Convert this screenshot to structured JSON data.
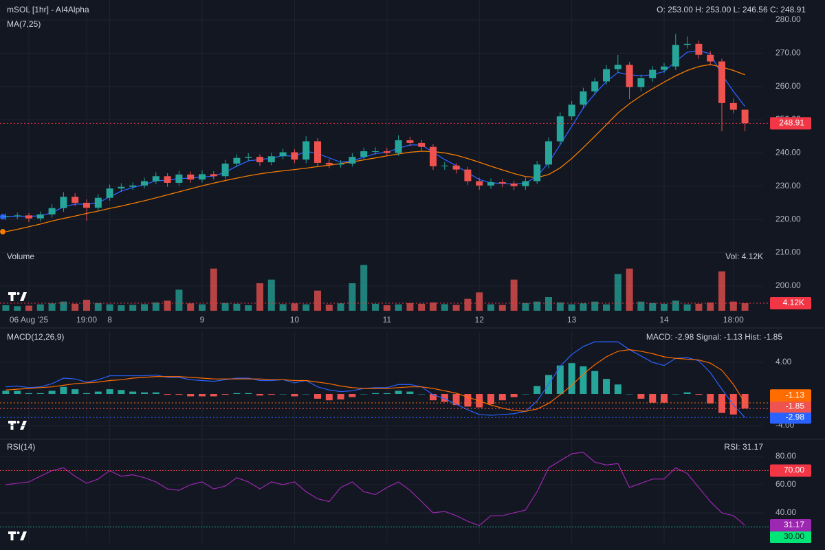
{
  "chart_data": [
    {
      "type": "candlestick",
      "title": "mSOL [1hr] - AI4Alpha",
      "subtitle": "MA(7,25)",
      "legend_text": "O: 253.00 H: 253.00 L: 246.56 C: 248.91",
      "categories": [
        null,
        null,
        "06 Aug '25",
        null,
        null,
        null,
        null,
        "19:00",
        null,
        "8",
        null,
        null,
        null,
        null,
        null,
        null,
        null,
        "9",
        null,
        null,
        null,
        null,
        null,
        null,
        null,
        "10",
        null,
        null,
        null,
        null,
        null,
        null,
        null,
        "11",
        null,
        null,
        null,
        null,
        null,
        null,
        null,
        "12",
        null,
        null,
        null,
        null,
        null,
        null,
        null,
        "13",
        null,
        null,
        null,
        null,
        null,
        null,
        null,
        "14",
        null,
        null,
        null,
        null,
        null,
        "18:00",
        null
      ],
      "open": [
        220.8,
        221.0,
        221.2,
        220.3,
        221.5,
        223.4,
        226.8,
        225.0,
        223.5,
        226.5,
        229.3,
        229.8,
        230.2,
        231.5,
        233.0,
        231.0,
        233.5,
        232.0,
        233.6,
        233.0,
        236.8,
        238.5,
        238.8,
        237.2,
        239.0,
        240.2,
        238.0,
        243.5,
        237.0,
        236.5,
        236.8,
        238.8,
        240.5,
        240.5,
        240.0,
        243.8,
        243.0,
        241.8,
        236.0,
        236.2,
        235.0,
        231.5,
        230.2,
        231.2,
        230.8,
        230.0,
        231.5,
        236.5,
        243.5,
        251.0,
        254.5,
        258.5,
        261.5,
        265.2,
        266.5,
        259.8,
        262.5,
        265.0,
        266.0,
        272.5,
        272.8,
        269.5,
        267.5,
        255.0,
        253.0
      ],
      "high": [
        221.8,
        222.0,
        221.9,
        222.4,
        224.6,
        228.2,
        227.9,
        226.0,
        227.6,
        230.5,
        230.9,
        231.1,
        232.6,
        234.2,
        233.9,
        234.6,
        234.4,
        234.8,
        234.5,
        237.9,
        239.6,
        239.9,
        239.6,
        240.1,
        241.3,
        241.1,
        245.0,
        244.4,
        238.1,
        237.8,
        239.9,
        241.6,
        241.7,
        241.5,
        245.3,
        244.9,
        243.9,
        242.6,
        237.3,
        236.9,
        235.8,
        232.5,
        232.3,
        232.1,
        231.6,
        232.6,
        237.6,
        244.6,
        252.2,
        255.6,
        259.6,
        262.6,
        266.4,
        269.5,
        267.4,
        263.6,
        266.1,
        267.1,
        275.8,
        275.0,
        273.8,
        270.6,
        268.3,
        256.3,
        253.0
      ],
      "low": [
        219.8,
        220.1,
        219.2,
        219.4,
        220.5,
        222.3,
        224.0,
        219.6,
        222.5,
        225.6,
        228.3,
        228.9,
        229.3,
        230.6,
        229.8,
        230.1,
        231.0,
        231.1,
        232.0,
        232.1,
        235.8,
        237.6,
        236.1,
        236.3,
        238.1,
        236.9,
        236.9,
        235.9,
        235.4,
        235.6,
        235.9,
        237.8,
        239.5,
        239.0,
        239.1,
        242.0,
        240.6,
        234.9,
        234.9,
        233.8,
        230.4,
        228.9,
        229.2,
        229.7,
        228.8,
        228.9,
        230.6,
        235.4,
        242.4,
        249.9,
        253.4,
        257.4,
        260.5,
        264.1,
        256.2,
        258.6,
        261.4,
        264.0,
        264.9,
        271.4,
        268.3,
        266.3,
        246.5,
        252.0,
        246.56
      ],
      "close": [
        221.0,
        221.2,
        220.3,
        221.5,
        223.4,
        226.8,
        225.0,
        223.5,
        226.5,
        229.3,
        229.8,
        230.2,
        231.5,
        233.0,
        231.0,
        233.5,
        232.0,
        233.6,
        233.0,
        236.8,
        238.5,
        238.8,
        237.2,
        239.0,
        240.2,
        238.0,
        243.5,
        237.0,
        236.5,
        236.8,
        238.8,
        240.5,
        240.5,
        240.0,
        243.8,
        243.0,
        241.8,
        236.0,
        236.2,
        235.0,
        231.5,
        230.2,
        231.2,
        230.8,
        230.0,
        231.5,
        236.5,
        243.5,
        251.0,
        254.5,
        258.5,
        261.5,
        265.2,
        266.5,
        259.8,
        262.5,
        265.0,
        266.0,
        272.5,
        272.8,
        269.5,
        267.5,
        255.0,
        253.0,
        248.91
      ],
      "colors": {
        "up": "#26a69a",
        "down": "#ef5350",
        "last": "#f23645"
      },
      "series": [
        {
          "color": "#2962ff",
          "values": [
            220.8,
            221.0,
            220.9,
            221.1,
            222.0,
            223.8,
            224.6,
            224.6,
            225.0,
            226.8,
            228.5,
            229.6,
            230.5,
            231.6,
            231.8,
            232.3,
            232.4,
            232.8,
            233.0,
            234.2,
            236.0,
            237.6,
            238.0,
            238.4,
            239.2,
            239.0,
            240.5,
            239.8,
            238.5,
            237.2,
            237.6,
            238.7,
            239.8,
            240.2,
            241.4,
            242.4,
            242.4,
            240.2,
            238.0,
            236.2,
            234.0,
            232.0,
            231.0,
            230.8,
            230.6,
            230.9,
            233.0,
            237.0,
            242.5,
            248.0,
            253.5,
            257.8,
            261.5,
            264.2,
            263.5,
            263.2,
            263.5,
            264.5,
            267.5,
            270.3,
            270.8,
            269.8,
            263.5,
            258.5,
            254.0
          ]
        },
        {
          "color": "#f57c00",
          "values": [
            216.3,
            217.0,
            217.8,
            218.6,
            219.5,
            220.3,
            221.0,
            221.8,
            222.5,
            223.3,
            224.0,
            224.8,
            225.6,
            226.5,
            227.4,
            228.3,
            229.2,
            230.1,
            230.9,
            231.7,
            232.4,
            233.1,
            233.7,
            234.2,
            234.6,
            235.0,
            235.4,
            235.9,
            236.3,
            236.8,
            237.3,
            237.9,
            238.5,
            239.1,
            239.7,
            240.2,
            240.5,
            240.4,
            240.0,
            239.3,
            238.3,
            237.2,
            236.0,
            234.9,
            233.8,
            232.9,
            232.6,
            233.5,
            235.5,
            238.3,
            241.6,
            245.0,
            248.5,
            252.0,
            254.8,
            257.2,
            259.3,
            261.3,
            263.2,
            264.8,
            266.0,
            266.6,
            265.8,
            264.8,
            263.5
          ]
        }
      ],
      "ylim": [
        191.9,
        286
      ],
      "yticks": [
        {
          "value": 200,
          "label": "200.00"
        },
        {
          "value": 210,
          "label": "210.00"
        },
        {
          "value": 220,
          "label": "220.00"
        },
        {
          "value": 230,
          "label": "230.00"
        },
        {
          "value": 240,
          "label": "240.00"
        },
        {
          "value": 250,
          "label": "250.00"
        },
        {
          "value": 260,
          "label": "260.00"
        },
        {
          "value": 270,
          "label": "270.00"
        },
        {
          "value": 280,
          "label": "280.00"
        }
      ],
      "grid": true
    },
    {
      "type": "volume",
      "title": "Volume",
      "legend_text": "Vol: 4.12K",
      "values": [
        3000,
        2500,
        2800,
        3500,
        4000,
        5000,
        3800,
        6000,
        4200,
        3500,
        3000,
        3200,
        3600,
        4500,
        5500,
        11500,
        4000,
        3500,
        23000,
        4200,
        3800,
        3000,
        15000,
        17000,
        3600,
        4000,
        3500,
        11000,
        3300,
        4000,
        15000,
        25000,
        3800,
        3000,
        3500,
        4200,
        3800,
        4500,
        3600,
        3200,
        6500,
        10000,
        3500,
        3200,
        17000,
        4200,
        5000,
        7500,
        4500,
        3500,
        4000,
        5000,
        3500,
        20000,
        23000,
        5000,
        4200,
        3800,
        5500,
        3500,
        3800,
        4500,
        21500,
        5000,
        4120
      ],
      "marker": {
        "value": 4120,
        "label": "4.12K"
      },
      "color": "#f23645",
      "ylim": [
        0,
        30000
      ]
    },
    {
      "type": "macd",
      "title": "MACD(12,26,9)",
      "legend_text": "MACD: -2.98 Signal: -1.13 Hist: -1.85",
      "series": [
        {
          "color": "#2962ff",
          "values": [
            0.9,
            1.0,
            0.8,
            0.9,
            1.3,
            2.0,
            1.9,
            1.5,
            1.8,
            2.3,
            2.3,
            2.3,
            2.3,
            2.4,
            2.1,
            2.1,
            1.8,
            1.7,
            1.6,
            1.8,
            2.0,
            2.0,
            1.7,
            1.7,
            1.8,
            1.4,
            1.7,
            0.9,
            0.5,
            0.3,
            0.4,
            0.7,
            0.8,
            0.8,
            1.2,
            1.2,
            0.9,
            -0.1,
            -0.6,
            -1.3,
            -2.0,
            -2.6,
            -2.7,
            -2.6,
            -2.5,
            -2.2,
            -0.9,
            1.2,
            3.5,
            5.0,
            6.0,
            6.6,
            6.6,
            6.6,
            5.6,
            4.8,
            4.0,
            3.6,
            4.5,
            4.6,
            4.2,
            2.7,
            0.6,
            -1.4,
            -2.98
          ]
        },
        {
          "color": "#ff6d00",
          "values": [
            0.5,
            0.6,
            0.7,
            0.8,
            0.9,
            1.1,
            1.3,
            1.4,
            1.5,
            1.7,
            1.8,
            2.0,
            2.1,
            2.2,
            2.2,
            2.2,
            2.1,
            2.0,
            1.9,
            1.9,
            1.9,
            1.9,
            1.9,
            1.8,
            1.8,
            1.7,
            1.7,
            1.5,
            1.3,
            1.0,
            0.8,
            0.7,
            0.7,
            0.7,
            0.8,
            0.9,
            0.9,
            0.7,
            0.4,
            0.1,
            -0.4,
            -0.9,
            -1.4,
            -1.8,
            -2.1,
            -2.2,
            -1.9,
            -1.2,
            -0.1,
            1.1,
            2.5,
            3.7,
            4.7,
            5.4,
            5.6,
            5.4,
            5.1,
            4.7,
            4.5,
            4.4,
            4.3,
            3.9,
            3.0,
            1.2,
            -1.13
          ]
        }
      ],
      "histogram": {
        "colors": {
          "up": "#26a69a",
          "down": "#ef5350"
        },
        "values": [
          0.4,
          0.4,
          0.1,
          0.1,
          0.4,
          0.9,
          0.6,
          0.1,
          0.3,
          0.6,
          0.5,
          0.3,
          0.2,
          0.2,
          -0.1,
          -0.1,
          -0.3,
          -0.3,
          -0.3,
          -0.1,
          0.1,
          0.1,
          -0.2,
          -0.1,
          0,
          -0.3,
          0,
          -0.6,
          -0.8,
          -0.7,
          -0.4,
          0,
          0.1,
          0.1,
          0.4,
          0.3,
          0,
          -0.8,
          -1.0,
          -1.4,
          -1.6,
          -1.7,
          -1.3,
          -0.8,
          -0.4,
          0,
          1.0,
          2.4,
          3.6,
          3.9,
          3.5,
          2.9,
          1.9,
          1.2,
          0,
          -0.6,
          -1.1,
          -1.1,
          0,
          0.2,
          -0.1,
          -1.2,
          -2.4,
          -2.6,
          -1.85
        ]
      },
      "ylim": [
        -5.13,
        7.83
      ],
      "yticks": [
        {
          "value": 4,
          "label": "4.00"
        },
        {
          "value": -4,
          "label": "-4.00"
        }
      ]
    },
    {
      "type": "rsi",
      "title": "RSI(14)",
      "legend_text": "RSI: 31.17",
      "series": [
        {
          "color": "#9c27b0",
          "values": [
            60,
            61,
            62,
            66,
            70,
            72,
            66,
            61,
            64,
            70,
            66,
            67,
            65,
            62,
            57,
            56,
            60,
            62,
            57,
            59,
            65,
            62,
            57,
            62,
            60,
            62,
            55,
            50,
            48,
            58,
            62,
            55,
            53,
            58,
            62,
            56,
            48,
            40,
            41,
            38,
            34,
            31,
            38,
            38,
            40,
            42,
            55,
            72,
            77,
            82,
            83,
            76,
            74,
            75,
            58,
            61,
            64,
            64,
            72,
            68,
            58,
            48,
            40,
            38,
            31.17
          ]
        }
      ],
      "levels": [
        {
          "value": 70,
          "label": "70.00",
          "color": "#f23645"
        },
        {
          "value": 30,
          "label": "30.00",
          "color": "#22ab94",
          "box": "#00e676"
        }
      ],
      "ylim": [
        18.5,
        89.3
      ],
      "yticks": [
        {
          "value": 80,
          "label": "80.00"
        },
        {
          "value": 60,
          "label": "60.00"
        },
        {
          "value": 40,
          "label": "40.00"
        }
      ]
    }
  ]
}
